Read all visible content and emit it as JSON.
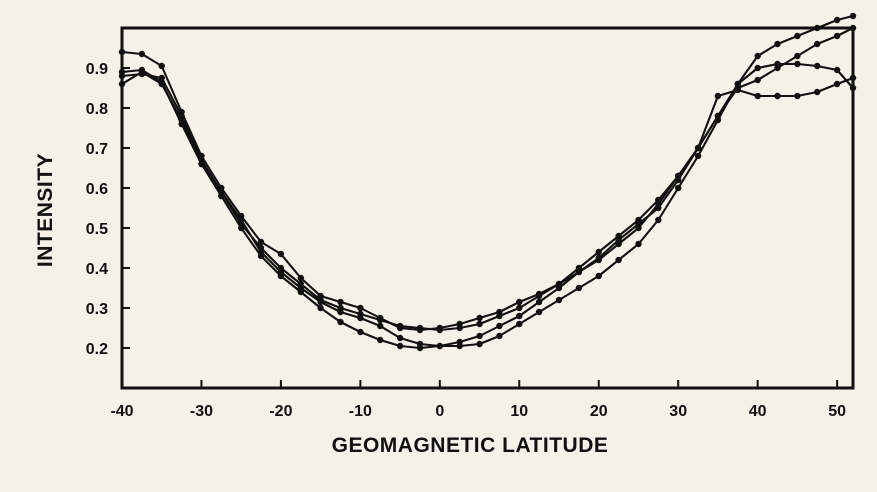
{
  "chart_data": {
    "type": "line",
    "title": "",
    "xlabel": "GEOMAGNETIC LATITUDE",
    "ylabel": "INTENSITY",
    "xlim": [
      -40,
      52
    ],
    "ylim": [
      0.1,
      1.0
    ],
    "xticks": [
      -40,
      -30,
      -20,
      -10,
      0,
      10,
      20,
      30,
      40,
      50
    ],
    "yticks": [
      0.2,
      0.3,
      0.4,
      0.5,
      0.6,
      0.7,
      0.8,
      0.9
    ],
    "xtick_labels": [
      "-40",
      "-30",
      "-20",
      "-10",
      "0",
      "10",
      "20",
      "30",
      "40",
      "50"
    ],
    "ytick_labels": [
      "0.2",
      "0.3",
      "0.4",
      "0.5",
      "0.6",
      "0.7",
      "0.8",
      "0.9"
    ],
    "grid": false,
    "legend": "none",
    "line_color": "#111111",
    "background": "#f4f1e8",
    "series": [
      {
        "x": [
          -40,
          -37.5,
          -35,
          -32.5,
          -30,
          -27.5,
          -25,
          -22.5,
          -20,
          -17.5,
          -15,
          -12.5,
          -10,
          -7.5,
          -5,
          -2.5,
          0,
          2.5,
          5,
          7.5,
          10,
          12.5,
          15,
          17.5,
          20,
          22.5,
          25,
          27.5,
          30,
          32.5,
          35,
          37.5,
          40,
          42.5,
          45,
          47.5,
          50,
          52
        ],
        "y": [
          0.94,
          0.935,
          0.905,
          0.79,
          0.68,
          0.6,
          0.53,
          0.465,
          0.435,
          0.375,
          0.33,
          0.315,
          0.3,
          0.275,
          0.25,
          0.245,
          0.25,
          0.26,
          0.275,
          0.29,
          0.315,
          0.335,
          0.36,
          0.39,
          0.42,
          0.46,
          0.5,
          0.56,
          0.63,
          0.7,
          0.78,
          0.86,
          0.9,
          0.91,
          0.91,
          0.905,
          0.895,
          0.85
        ]
      },
      {
        "x": [
          -40,
          -37.5,
          -35,
          -32.5,
          -30,
          -27.5,
          -25,
          -22.5,
          -20,
          -17.5,
          -15,
          -12.5,
          -10,
          -7.5,
          -5,
          -2.5,
          0,
          2.5,
          5,
          7.5,
          10,
          12.5,
          15,
          17.5,
          20,
          22.5,
          25,
          27.5,
          30,
          32.5,
          35,
          37.5,
          40,
          42.5,
          45,
          47.5,
          50,
          52
        ],
        "y": [
          0.88,
          0.885,
          0.875,
          0.78,
          0.67,
          0.59,
          0.51,
          0.45,
          0.4,
          0.36,
          0.32,
          0.3,
          0.285,
          0.27,
          0.255,
          0.25,
          0.245,
          0.25,
          0.26,
          0.28,
          0.3,
          0.33,
          0.36,
          0.4,
          0.44,
          0.48,
          0.52,
          0.57,
          0.63,
          0.7,
          0.78,
          0.85,
          0.87,
          0.9,
          0.93,
          0.96,
          0.98,
          1.0
        ]
      },
      {
        "x": [
          -40,
          -37.5,
          -35,
          -32.5,
          -30,
          -27.5,
          -25,
          -22.5,
          -20,
          -17.5,
          -15,
          -12.5,
          -10,
          -7.5,
          -5,
          -2.5,
          0,
          2.5,
          5,
          7.5,
          10,
          12.5,
          15,
          17.5,
          20,
          22.5,
          25,
          27.5,
          30,
          32.5,
          35,
          37.5,
          40,
          42.5,
          45,
          47.5,
          50,
          52
        ],
        "y": [
          0.86,
          0.89,
          0.86,
          0.77,
          0.66,
          0.58,
          0.5,
          0.43,
          0.38,
          0.34,
          0.3,
          0.265,
          0.24,
          0.22,
          0.205,
          0.2,
          0.205,
          0.205,
          0.21,
          0.23,
          0.26,
          0.29,
          0.32,
          0.35,
          0.38,
          0.42,
          0.46,
          0.52,
          0.6,
          0.68,
          0.77,
          0.86,
          0.93,
          0.96,
          0.98,
          1.0,
          1.02,
          1.03
        ]
      },
      {
        "x": [
          -40,
          -37.5,
          -35,
          -32.5,
          -30,
          -27.5,
          -25,
          -22.5,
          -20,
          -17.5,
          -15,
          -12.5,
          -10,
          -7.5,
          -5,
          -2.5,
          0,
          2.5,
          5,
          7.5,
          10,
          12.5,
          15,
          17.5,
          20,
          22.5,
          25,
          27.5,
          30,
          32.5,
          35,
          37.5,
          40,
          42.5,
          45,
          47.5,
          50,
          52
        ],
        "y": [
          0.89,
          0.895,
          0.865,
          0.76,
          0.66,
          0.59,
          0.52,
          0.44,
          0.39,
          0.35,
          0.315,
          0.29,
          0.275,
          0.255,
          0.225,
          0.21,
          0.205,
          0.215,
          0.23,
          0.255,
          0.28,
          0.315,
          0.35,
          0.39,
          0.425,
          0.47,
          0.51,
          0.55,
          0.62,
          0.7,
          0.83,
          0.845,
          0.83,
          0.83,
          0.83,
          0.84,
          0.86,
          0.875
        ]
      }
    ]
  }
}
